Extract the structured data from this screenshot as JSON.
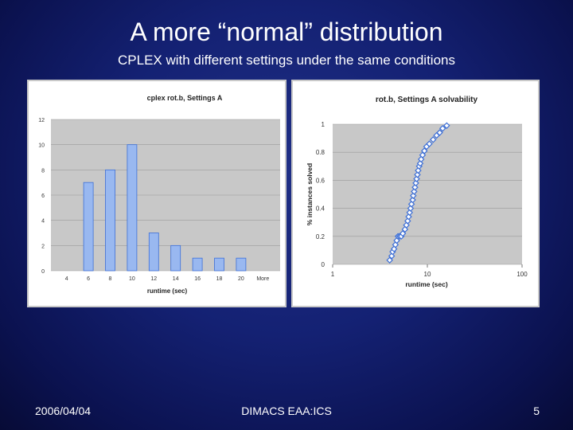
{
  "slide": {
    "title": "A more “normal” distribution",
    "subtitle": "CPLEX with different settings under the same conditions",
    "footer_date": "2006/04/04",
    "footer_center": "DIMACS EAA:ICS",
    "page_number": "5"
  },
  "colors": {
    "background": "#142173",
    "bar_fill": "#99b8f0",
    "bar_stroke": "#3d6fd6",
    "marker": "#3d6fd6",
    "plot_area": "#c8c8c8"
  },
  "chart_data": [
    {
      "type": "bar",
      "title": "cplex rot.b, Settings A",
      "xlabel": "runtime (sec)",
      "ylabel": "",
      "categories": [
        "4",
        "6",
        "8",
        "10",
        "12",
        "14",
        "16",
        "18",
        "20",
        "More"
      ],
      "values": [
        0,
        7,
        8,
        10,
        3,
        2,
        1,
        1,
        1,
        0
      ],
      "yticks": [
        0,
        2,
        4,
        6,
        8,
        10,
        12
      ],
      "ylim": [
        0,
        12
      ],
      "grid": true,
      "legend": "none"
    },
    {
      "type": "scatter",
      "title": "rot.b, Settings A solvability",
      "xlabel": "runtime (sec)",
      "ylabel": "% instances solved",
      "xscale": "log",
      "xlim": [
        1,
        100
      ],
      "ylim": [
        0,
        1
      ],
      "xticks": [
        "1",
        "10",
        "100"
      ],
      "yticks": [
        "0",
        "0.2",
        "0.4",
        "0.6",
        "0.8",
        "1"
      ],
      "x": [
        4.0,
        4.2,
        4.3,
        4.45,
        4.6,
        4.75,
        4.9,
        5.1,
        5.3,
        5.5,
        5.8,
        6.0,
        6.2,
        6.35,
        6.5,
        6.65,
        6.8,
        7.0,
        7.1,
        7.25,
        7.4,
        7.55,
        7.7,
        7.85,
        8.0,
        8.2,
        8.4,
        8.6,
        8.9,
        9.3,
        9.8,
        10.5,
        11.5,
        12.5,
        13.5,
        14.5,
        16.0
      ],
      "y": [
        0.03,
        0.06,
        0.09,
        0.11,
        0.14,
        0.17,
        0.2,
        0.2,
        0.2,
        0.22,
        0.25,
        0.28,
        0.31,
        0.34,
        0.37,
        0.4,
        0.43,
        0.46,
        0.49,
        0.52,
        0.55,
        0.58,
        0.61,
        0.64,
        0.67,
        0.7,
        0.72,
        0.75,
        0.78,
        0.81,
        0.84,
        0.86,
        0.89,
        0.92,
        0.94,
        0.97,
        0.99
      ],
      "grid": true,
      "legend": "none"
    }
  ]
}
